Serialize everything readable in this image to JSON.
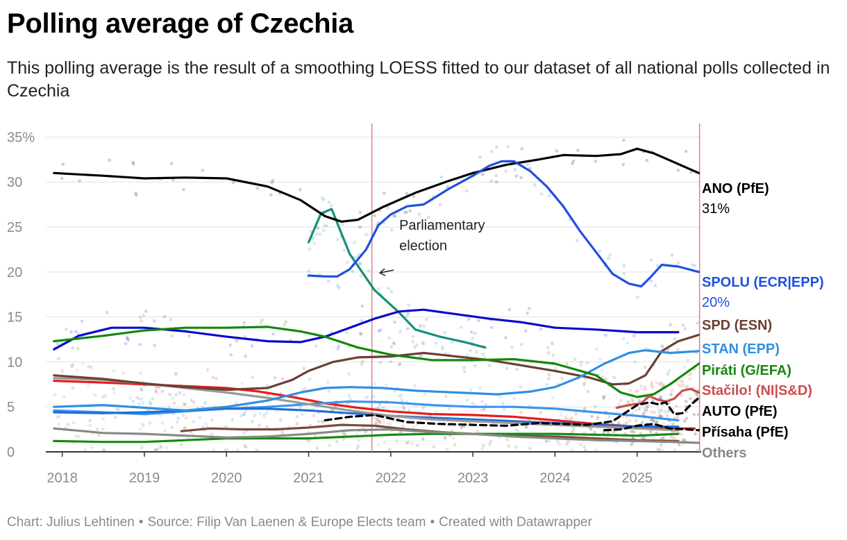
{
  "header": {
    "title": "Polling average of Czechia",
    "subtitle": "This polling average is the result of a smoothing LOESS fitted to our dataset of all national polls collected in Czechia"
  },
  "footer": {
    "chart_credit": "Chart: Julius Lehtinen",
    "source": "Source: Filip Van Laenen & Europe Elects team",
    "created": "Created with Datawrapper"
  },
  "chart_data": {
    "type": "line",
    "title": "Polling average of Czechia",
    "xlabel": "",
    "ylabel": "",
    "xlim": [
      2017.8,
      2025.78
    ],
    "ylim": [
      0,
      36.5
    ],
    "y_ticks": [
      0,
      5,
      10,
      15,
      20,
      25,
      30,
      35
    ],
    "y_tick_labels": [
      "0",
      "5",
      "10",
      "15",
      "20",
      "25",
      "30",
      "35%"
    ],
    "x_ticks": [
      2018,
      2019,
      2020,
      2021,
      2022,
      2023,
      2024,
      2025
    ],
    "x_tick_labels": [
      "2018",
      "2019",
      "2020",
      "2021",
      "2022",
      "2023",
      "2024",
      "2025"
    ],
    "grid": true,
    "vertical_markers": [
      2021.77,
      2025.76
    ],
    "annotation": {
      "text_line1": "Parliamentary",
      "text_line2": "election",
      "x": 2021.85,
      "y": 19.9
    },
    "series": [
      {
        "name": "ANO (PfE)",
        "value_label": "31%",
        "color": "#000000",
        "x": [
          2017.9,
          2018.5,
          2019.0,
          2019.5,
          2020.0,
          2020.5,
          2020.9,
          2021.2,
          2021.4,
          2021.6,
          2021.9,
          2022.3,
          2022.7,
          2023.0,
          2023.4,
          2023.8,
          2024.1,
          2024.5,
          2024.8,
          2025.0,
          2025.2,
          2025.5,
          2025.75
        ],
        "y": [
          31,
          30.7,
          30.4,
          30.5,
          30.4,
          29.5,
          28,
          26.2,
          25.6,
          25.8,
          27.2,
          28.8,
          30.1,
          31,
          31.9,
          32.5,
          33,
          32.9,
          33.1,
          33.7,
          33.2,
          32,
          31
        ]
      },
      {
        "name": "SPOLU (ECR|EPP)",
        "value_label": "20%",
        "color": "#1f4fe0",
        "x": [
          2021.0,
          2021.2,
          2021.35,
          2021.5,
          2021.7,
          2021.85,
          2022.0,
          2022.2,
          2022.4,
          2022.7,
          2023.0,
          2023.2,
          2023.35,
          2023.5,
          2023.7,
          2023.9,
          2024.1,
          2024.3,
          2024.5,
          2024.7,
          2024.9,
          2025.05,
          2025.15,
          2025.3,
          2025.5,
          2025.75
        ],
        "y": [
          19.6,
          19.5,
          19.5,
          20.3,
          22.5,
          25.2,
          26.4,
          27.3,
          27.5,
          29.2,
          30.7,
          31.8,
          32.3,
          32.3,
          31.2,
          29.5,
          27.3,
          24.6,
          22.2,
          19.8,
          18.7,
          18.4,
          19.3,
          20.8,
          20.6,
          20
        ]
      },
      {
        "name": "SPD (ESN)",
        "value_label": "",
        "color": "#6b4034",
        "x": [
          2017.9,
          2018.5,
          2019.0,
          2019.5,
          2020.0,
          2020.5,
          2020.8,
          2021.0,
          2021.3,
          2021.6,
          2022.0,
          2022.4,
          2022.8,
          2023.2,
          2023.6,
          2024.0,
          2024.4,
          2024.7,
          2024.9,
          2025.1,
          2025.3,
          2025.5,
          2025.75
        ],
        "y": [
          8.5,
          8.1,
          7.6,
          7.2,
          6.9,
          7.1,
          8,
          9,
          10,
          10.5,
          10.6,
          11,
          10.6,
          10.2,
          9.6,
          9,
          8.3,
          7.5,
          7.6,
          8.5,
          11.2,
          12.3,
          13
        ]
      },
      {
        "name": "STAN (EPP)",
        "value_label": "",
        "color": "#2f8fe0",
        "x": [
          2017.9,
          2018.5,
          2019.0,
          2019.5,
          2020.0,
          2020.5,
          2020.9,
          2021.2,
          2021.5,
          2021.9,
          2022.3,
          2022.8,
          2023.3,
          2023.7,
          2024.0,
          2024.3,
          2024.6,
          2024.9,
          2025.1,
          2025.4,
          2025.75
        ],
        "y": [
          5,
          5.2,
          4.9,
          4.6,
          5,
          5.7,
          6.6,
          7.1,
          7.2,
          7.1,
          6.8,
          6.6,
          6.4,
          6.7,
          7.2,
          8.3,
          9.8,
          11,
          11.3,
          11,
          11.2
        ]
      },
      {
        "name": "Piráti (G/EFA)",
        "value_label": "",
        "color": "#13870a",
        "x": [
          2017.9,
          2018.5,
          2019.0,
          2019.5,
          2020.0,
          2020.5,
          2020.9,
          2021.2,
          2021.6,
          2022.0,
          2022.5,
          2023.0,
          2023.5,
          2024.0,
          2024.5,
          2024.8,
          2025.0,
          2025.2,
          2025.4,
          2025.75
        ],
        "y": [
          12.3,
          12.9,
          13.5,
          13.8,
          13.8,
          13.9,
          13.4,
          12.8,
          11.6,
          10.8,
          10.2,
          10.2,
          10.3,
          9.8,
          8.5,
          6.6,
          6.1,
          6.4,
          7.5,
          9.8
        ]
      },
      {
        "name": "Stačilo! (NI|S&D)",
        "value_label": "",
        "color": "#cc4d4d",
        "x": [
          2024.75,
          2024.9,
          2025.05,
          2025.15,
          2025.25,
          2025.35,
          2025.45,
          2025.55,
          2025.65,
          2025.75
        ],
        "y": [
          4.9,
          5.2,
          5.4,
          6.2,
          5.8,
          5.6,
          5.9,
          6.8,
          7.0,
          6.6
        ]
      },
      {
        "name": "AUTO (PfE)",
        "value_label": "",
        "color": "#000000",
        "dashed": true,
        "x": [
          2021.2,
          2021.5,
          2021.8,
          2022.2,
          2022.6,
          2023.0,
          2023.4,
          2023.8,
          2024.1,
          2024.4,
          2024.7,
          2024.85,
          2025.0,
          2025.15,
          2025.25,
          2025.35,
          2025.45,
          2025.55,
          2025.65,
          2025.75
        ],
        "y": [
          3.5,
          3.9,
          4.1,
          3.3,
          3.1,
          3.0,
          2.9,
          3.2,
          3.1,
          3.0,
          3.4,
          4.3,
          5.2,
          5.5,
          5.3,
          5.5,
          4.2,
          4.3,
          5.2,
          6.0
        ]
      },
      {
        "name": "Přísaha (PfE)",
        "value_label": "",
        "color": "#000000",
        "dashed": true,
        "x": [
          2024.6,
          2024.8,
          2025.0,
          2025.2,
          2025.4,
          2025.6,
          2025.75
        ],
        "y": [
          2.4,
          2.5,
          2.9,
          3.1,
          2.6,
          2.5,
          2.4
        ]
      },
      {
        "name": "Others",
        "value_label": "",
        "color": "#888888",
        "x": [
          2017.9,
          2018.5,
          2019.0,
          2019.5,
          2020.0,
          2020.5,
          2021.0,
          2021.5,
          2022.0,
          2022.5,
          2023.0,
          2023.5,
          2024.0,
          2024.5,
          2025.0,
          2025.4,
          2025.75
        ],
        "y": [
          2.6,
          2.1,
          2.0,
          1.8,
          1.6,
          1.7,
          2.0,
          2.4,
          2.5,
          2.2,
          2.0,
          1.7,
          1.5,
          1.3,
          1.2,
          1.1,
          1.0
        ]
      }
    ],
    "extra_lines": [
      {
        "color": "#13907a",
        "x": [
          2021.0,
          2021.15,
          2021.28,
          2021.5,
          2021.8,
          2022.1,
          2022.3,
          2022.6,
          2022.9,
          2023.15
        ],
        "y": [
          23.3,
          26.5,
          27,
          22,
          18,
          15.5,
          13.6,
          12.8,
          12.2,
          11.6
        ]
      },
      {
        "color": "#0a0acc",
        "x": [
          2017.9,
          2018.2,
          2018.6,
          2019.0,
          2019.5,
          2020.0,
          2020.5,
          2020.9,
          2021.2,
          2021.5,
          2021.8,
          2022.1,
          2022.4,
          2022.8,
          2023.2,
          2023.6,
          2024.0,
          2024.5,
          2025.0,
          2025.5
        ],
        "y": [
          11.4,
          12.9,
          13.8,
          13.8,
          13.4,
          12.8,
          12.3,
          12.2,
          12.8,
          13.8,
          14.8,
          15.6,
          15.8,
          15.3,
          14.8,
          14.4,
          13.8,
          13.6,
          13.3,
          13.3
        ]
      },
      {
        "color": "#e81b1b",
        "x": [
          2017.9,
          2018.5,
          2019.0,
          2019.5,
          2020.0,
          2020.4,
          2020.8,
          2021.2,
          2021.6,
          2022.0,
          2022.5,
          2023.0,
          2023.5,
          2024.0,
          2024.5,
          2025.0,
          2025.4,
          2025.7
        ],
        "y": [
          7.9,
          7.7,
          7.5,
          7.3,
          7.1,
          6.7,
          6.1,
          5.4,
          4.9,
          4.5,
          4.2,
          4.1,
          3.9,
          3.5,
          3.1,
          2.8,
          2.6,
          2.6
        ]
      },
      {
        "color": "#3b95ee",
        "x": [
          2017.9,
          2018.5,
          2019.0,
          2019.5,
          2020.0,
          2020.5,
          2021.0,
          2021.5,
          2022.0,
          2022.5,
          2023.0,
          2023.5,
          2024.0,
          2024.5,
          2025.0,
          2025.5
        ],
        "y": [
          4.6,
          4.4,
          4.2,
          4.5,
          4.8,
          5.0,
          5.3,
          5.6,
          5.5,
          5.2,
          5.0,
          5.0,
          4.8,
          4.4,
          4.0,
          3.5
        ]
      },
      {
        "color": "#1f6fd4",
        "x": [
          2017.9,
          2018.5,
          2019.0,
          2019.5,
          2020.0,
          2020.5,
          2021.0,
          2021.5,
          2022.0,
          2022.5,
          2023.0,
          2023.5,
          2024.0,
          2024.5,
          2025.0,
          2025.5
        ],
        "y": [
          4.4,
          4.3,
          4.4,
          4.6,
          4.8,
          4.8,
          4.6,
          4.3,
          4.0,
          3.8,
          3.6,
          3.4,
          3.2,
          3.0,
          2.8,
          2.8
        ]
      },
      {
        "color": "#7a4b3a",
        "x": [
          2019.45,
          2019.8,
          2020.2,
          2020.6,
          2021.0,
          2021.4,
          2021.8,
          2022.2,
          2022.6,
          2023.0,
          2023.5,
          2024.0,
          2024.5,
          2025.0,
          2025.5
        ],
        "y": [
          2.3,
          2.6,
          2.5,
          2.5,
          2.7,
          3.0,
          2.9,
          2.5,
          2.2,
          2.0,
          1.8,
          1.7,
          1.5,
          1.3,
          1.2
        ]
      },
      {
        "color": "#1a8a12",
        "x": [
          2017.9,
          2018.5,
          2019.0,
          2019.5,
          2020.0,
          2020.5,
          2021.0,
          2021.5,
          2022.0,
          2022.5,
          2023.0,
          2023.5,
          2024.0,
          2024.5,
          2025.0,
          2025.5
        ],
        "y": [
          1.2,
          1.1,
          1.1,
          1.3,
          1.5,
          1.5,
          1.5,
          1.7,
          1.9,
          2.0,
          2.0,
          2.0,
          2.0,
          1.9,
          1.8,
          2.0
        ]
      },
      {
        "color": "#999999",
        "x": [
          2017.9,
          2018.5,
          2019.0,
          2019.5,
          2020.0,
          2020.5,
          2021.0,
          2021.5,
          2022.0,
          2022.5,
          2023.0,
          2023.5,
          2024.0,
          2024.5,
          2025.0,
          2025.5
        ],
        "y": [
          8.2,
          8.0,
          7.6,
          7.1,
          6.6,
          6.0,
          5.3,
          4.6,
          4.0,
          3.6,
          3.4,
          3.2,
          3.0,
          2.8,
          2.6,
          2.4
        ]
      }
    ],
    "label_colors": {
      "ANO (PfE)": "#000000",
      "SPOLU (ECR|EPP)": "#1f4fe0",
      "SPD (ESN)": "#6b4034",
      "STAN (EPP)": "#2f8fe0",
      "Piráti (G/EFA)": "#13870a",
      "Stačilo! (NI|S&D)": "#cc4d4d",
      "AUTO (PfE)": "#000000",
      "Přísaha (PfE)": "#000000",
      "Others": "#888888"
    }
  }
}
